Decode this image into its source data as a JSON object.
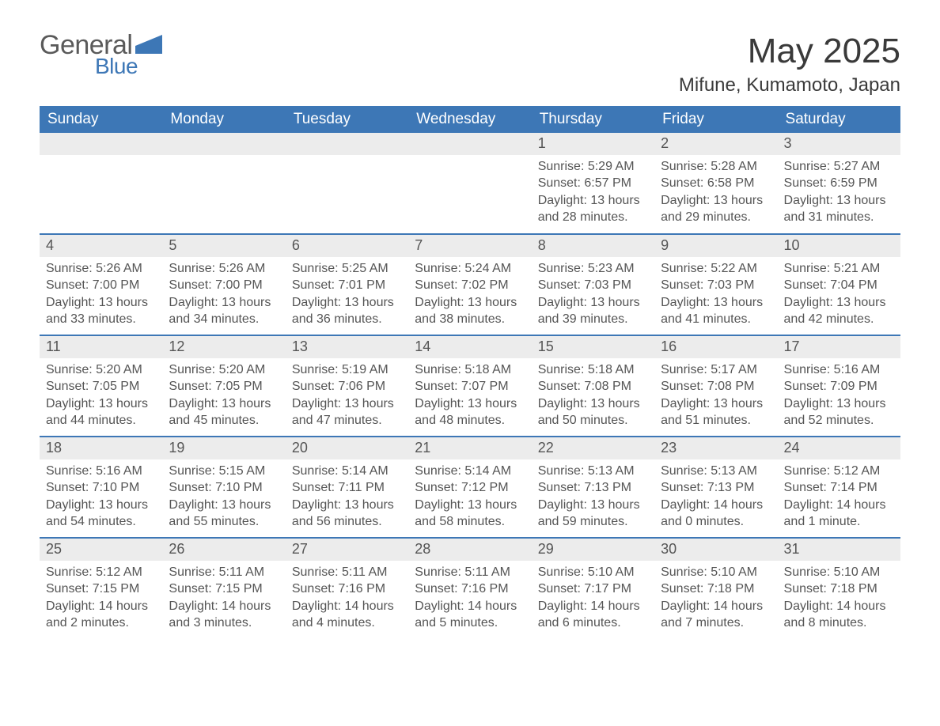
{
  "brand": {
    "line1": "General",
    "line2": "Blue"
  },
  "title": "May 2025",
  "location": "Mifune, Kumamoto, Japan",
  "colors": {
    "header_bg": "#3d77b6",
    "header_text": "#ffffff",
    "daynum_bg": "#ececec",
    "text": "#555555",
    "rule": "#3d77b6"
  },
  "columns": [
    "Sunday",
    "Monday",
    "Tuesday",
    "Wednesday",
    "Thursday",
    "Friday",
    "Saturday"
  ],
  "weeks": [
    [
      {
        "day": "",
        "lines": []
      },
      {
        "day": "",
        "lines": []
      },
      {
        "day": "",
        "lines": []
      },
      {
        "day": "",
        "lines": []
      },
      {
        "day": "1",
        "lines": [
          "Sunrise: 5:29 AM",
          "Sunset: 6:57 PM",
          "Daylight: 13 hours and 28 minutes."
        ]
      },
      {
        "day": "2",
        "lines": [
          "Sunrise: 5:28 AM",
          "Sunset: 6:58 PM",
          "Daylight: 13 hours and 29 minutes."
        ]
      },
      {
        "day": "3",
        "lines": [
          "Sunrise: 5:27 AM",
          "Sunset: 6:59 PM",
          "Daylight: 13 hours and 31 minutes."
        ]
      }
    ],
    [
      {
        "day": "4",
        "lines": [
          "Sunrise: 5:26 AM",
          "Sunset: 7:00 PM",
          "Daylight: 13 hours and 33 minutes."
        ]
      },
      {
        "day": "5",
        "lines": [
          "Sunrise: 5:26 AM",
          "Sunset: 7:00 PM",
          "Daylight: 13 hours and 34 minutes."
        ]
      },
      {
        "day": "6",
        "lines": [
          "Sunrise: 5:25 AM",
          "Sunset: 7:01 PM",
          "Daylight: 13 hours and 36 minutes."
        ]
      },
      {
        "day": "7",
        "lines": [
          "Sunrise: 5:24 AM",
          "Sunset: 7:02 PM",
          "Daylight: 13 hours and 38 minutes."
        ]
      },
      {
        "day": "8",
        "lines": [
          "Sunrise: 5:23 AM",
          "Sunset: 7:03 PM",
          "Daylight: 13 hours and 39 minutes."
        ]
      },
      {
        "day": "9",
        "lines": [
          "Sunrise: 5:22 AM",
          "Sunset: 7:03 PM",
          "Daylight: 13 hours and 41 minutes."
        ]
      },
      {
        "day": "10",
        "lines": [
          "Sunrise: 5:21 AM",
          "Sunset: 7:04 PM",
          "Daylight: 13 hours and 42 minutes."
        ]
      }
    ],
    [
      {
        "day": "11",
        "lines": [
          "Sunrise: 5:20 AM",
          "Sunset: 7:05 PM",
          "Daylight: 13 hours and 44 minutes."
        ]
      },
      {
        "day": "12",
        "lines": [
          "Sunrise: 5:20 AM",
          "Sunset: 7:05 PM",
          "Daylight: 13 hours and 45 minutes."
        ]
      },
      {
        "day": "13",
        "lines": [
          "Sunrise: 5:19 AM",
          "Sunset: 7:06 PM",
          "Daylight: 13 hours and 47 minutes."
        ]
      },
      {
        "day": "14",
        "lines": [
          "Sunrise: 5:18 AM",
          "Sunset: 7:07 PM",
          "Daylight: 13 hours and 48 minutes."
        ]
      },
      {
        "day": "15",
        "lines": [
          "Sunrise: 5:18 AM",
          "Sunset: 7:08 PM",
          "Daylight: 13 hours and 50 minutes."
        ]
      },
      {
        "day": "16",
        "lines": [
          "Sunrise: 5:17 AM",
          "Sunset: 7:08 PM",
          "Daylight: 13 hours and 51 minutes."
        ]
      },
      {
        "day": "17",
        "lines": [
          "Sunrise: 5:16 AM",
          "Sunset: 7:09 PM",
          "Daylight: 13 hours and 52 minutes."
        ]
      }
    ],
    [
      {
        "day": "18",
        "lines": [
          "Sunrise: 5:16 AM",
          "Sunset: 7:10 PM",
          "Daylight: 13 hours and 54 minutes."
        ]
      },
      {
        "day": "19",
        "lines": [
          "Sunrise: 5:15 AM",
          "Sunset: 7:10 PM",
          "Daylight: 13 hours and 55 minutes."
        ]
      },
      {
        "day": "20",
        "lines": [
          "Sunrise: 5:14 AM",
          "Sunset: 7:11 PM",
          "Daylight: 13 hours and 56 minutes."
        ]
      },
      {
        "day": "21",
        "lines": [
          "Sunrise: 5:14 AM",
          "Sunset: 7:12 PM",
          "Daylight: 13 hours and 58 minutes."
        ]
      },
      {
        "day": "22",
        "lines": [
          "Sunrise: 5:13 AM",
          "Sunset: 7:13 PM",
          "Daylight: 13 hours and 59 minutes."
        ]
      },
      {
        "day": "23",
        "lines": [
          "Sunrise: 5:13 AM",
          "Sunset: 7:13 PM",
          "Daylight: 14 hours and 0 minutes."
        ]
      },
      {
        "day": "24",
        "lines": [
          "Sunrise: 5:12 AM",
          "Sunset: 7:14 PM",
          "Daylight: 14 hours and 1 minute."
        ]
      }
    ],
    [
      {
        "day": "25",
        "lines": [
          "Sunrise: 5:12 AM",
          "Sunset: 7:15 PM",
          "Daylight: 14 hours and 2 minutes."
        ]
      },
      {
        "day": "26",
        "lines": [
          "Sunrise: 5:11 AM",
          "Sunset: 7:15 PM",
          "Daylight: 14 hours and 3 minutes."
        ]
      },
      {
        "day": "27",
        "lines": [
          "Sunrise: 5:11 AM",
          "Sunset: 7:16 PM",
          "Daylight: 14 hours and 4 minutes."
        ]
      },
      {
        "day": "28",
        "lines": [
          "Sunrise: 5:11 AM",
          "Sunset: 7:16 PM",
          "Daylight: 14 hours and 5 minutes."
        ]
      },
      {
        "day": "29",
        "lines": [
          "Sunrise: 5:10 AM",
          "Sunset: 7:17 PM",
          "Daylight: 14 hours and 6 minutes."
        ]
      },
      {
        "day": "30",
        "lines": [
          "Sunrise: 5:10 AM",
          "Sunset: 7:18 PM",
          "Daylight: 14 hours and 7 minutes."
        ]
      },
      {
        "day": "31",
        "lines": [
          "Sunrise: 5:10 AM",
          "Sunset: 7:18 PM",
          "Daylight: 14 hours and 8 minutes."
        ]
      }
    ]
  ]
}
